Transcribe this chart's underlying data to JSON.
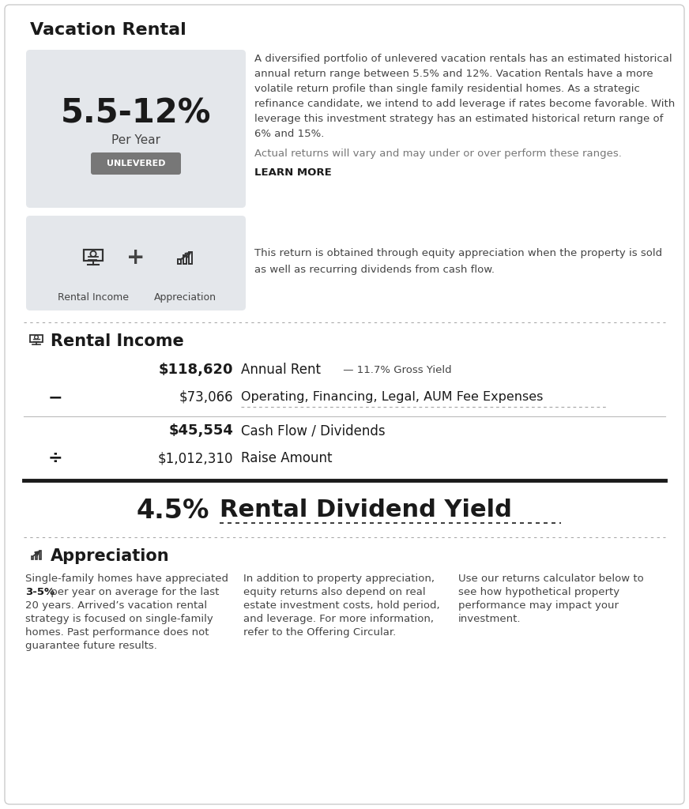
{
  "bg_color": "#ffffff",
  "border_color": "#cccccc",
  "title": "Vacation Rental",
  "return_range": "5.5-12%",
  "per_year": "Per Year",
  "unlevered_label": "UNLEVERED",
  "box_bg": "#e4e7eb",
  "description1_lines": [
    "A diversified portfolio of unlevered vacation rentals has an estimated historical",
    "annual return range between 5.5% and 12%. Vacation Rentals have a more",
    "volatile return profile than single family residential homes. As a strategic",
    "refinance candidate, we intend to add leverage if rates become favorable. With",
    "leverage this investment strategy has an estimated historical return range of",
    "6% and 15%."
  ],
  "actual_returns": "Actual returns will vary and may under or over perform these ranges.",
  "learn_more": "LEARN MORE",
  "icons_label1": "Rental Income",
  "icons_label2": "Appreciation",
  "icons_plus": "+",
  "desc2_line1": "This return is obtained through equity appreciation when the property is sold",
  "desc2_line2": "as well as recurring dividends from cash flow.",
  "section2_title": "Rental Income",
  "annual_rent_val": "$118,620",
  "annual_rent_label": "Annual Rent",
  "annual_rent_suffix": " — 11.7% Gross Yield",
  "minus_symbol": "−",
  "expense_val": "$73,066",
  "expense_label": "Operating, Financing, Legal, AUM Fee Expenses",
  "cashflow_val": "$45,554",
  "cashflow_label": "Cash Flow / Dividends",
  "divide_symbol": "÷",
  "raise_val": "$1,012,310",
  "raise_label": "Raise Amount",
  "yield_pct": "4.5%",
  "yield_label": "Rental Dividend Yield",
  "section3_title": "Appreciation",
  "appr_text1_lines": [
    "Single-family homes have appreciated",
    "3-5% per year on average for the last",
    "20 years. Arrived’s vacation rental",
    "strategy is focused on single-family",
    "homes. Past performance does not",
    "guarantee future results."
  ],
  "appr_text2_lines": [
    "In addition to property appreciation,",
    "equity returns also depend on real",
    "estate investment costs, hold period,",
    "and leverage. For more information,",
    "refer to the Offering Circular."
  ],
  "appr_text3_lines": [
    "Use our returns calculator below to",
    "see how hypothetical property",
    "performance may impact your",
    "investment."
  ],
  "dark_color": "#1a1a1a",
  "medium_color": "#444444",
  "light_color": "#777777",
  "dotted_color": "#aaaaaa",
  "badge_color": "#777777"
}
